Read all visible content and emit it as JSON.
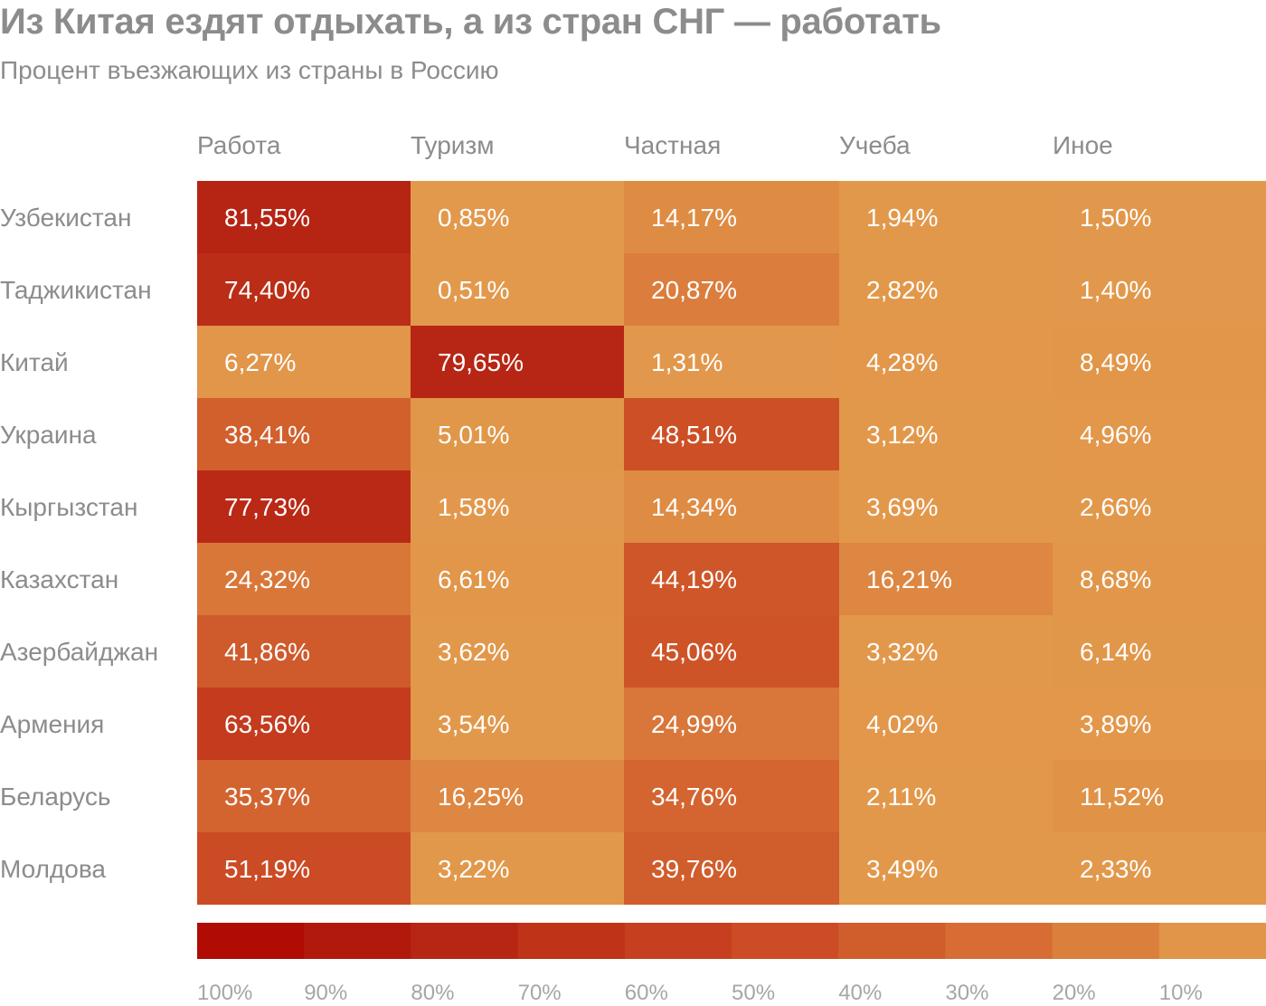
{
  "title": "Из Китая ездят отдыхать, а из стран СНГ — работать",
  "subtitle": "Процент въезжающих из страны в Россию",
  "chart_data": {
    "type": "heatmap",
    "columns": [
      "Работа",
      "Туризм",
      "Частная",
      "Учеба",
      "Иное"
    ],
    "rows": [
      "Узбекистан",
      "Таджикистан",
      "Китай",
      "Украина",
      "Кыргызстан",
      "Казахстан",
      "Азербайджан",
      "Армения",
      "Беларусь",
      "Молдова"
    ],
    "values": [
      [
        81.55,
        0.85,
        14.17,
        1.94,
        1.5
      ],
      [
        74.4,
        0.51,
        20.87,
        2.82,
        1.4
      ],
      [
        6.27,
        79.65,
        1.31,
        4.28,
        8.49
      ],
      [
        38.41,
        5.01,
        48.51,
        3.12,
        4.96
      ],
      [
        77.73,
        1.58,
        14.34,
        3.69,
        2.66
      ],
      [
        24.32,
        6.61,
        44.19,
        16.21,
        8.68
      ],
      [
        41.86,
        3.62,
        45.06,
        3.32,
        6.14
      ],
      [
        63.56,
        3.54,
        24.99,
        4.02,
        3.89
      ],
      [
        35.37,
        16.25,
        34.76,
        2.11,
        11.52
      ],
      [
        51.19,
        3.22,
        39.76,
        3.49,
        2.33
      ]
    ],
    "labels": [
      [
        "81,55%",
        "0,85%",
        "14,17%",
        "1,94%",
        "1,50%"
      ],
      [
        "74,40%",
        "0,51%",
        "20,87%",
        "2,82%",
        "1,40%"
      ],
      [
        "6,27%",
        "79,65%",
        "1,31%",
        "4,28%",
        "8,49%"
      ],
      [
        "38,41%",
        "5,01%",
        "48,51%",
        "3,12%",
        "4,96%"
      ],
      [
        "77,73%",
        "1,58%",
        "14,34%",
        "3,69%",
        "2,66%"
      ],
      [
        "24,32%",
        "6,61%",
        "44,19%",
        "16,21%",
        "8,68%"
      ],
      [
        "41,86%",
        "3,62%",
        "45,06%",
        "3,32%",
        "6,14%"
      ],
      [
        "63,56%",
        "3,54%",
        "24,99%",
        "4,02%",
        "3,89%"
      ],
      [
        "35,37%",
        "16,25%",
        "34,76%",
        "2,11%",
        "11,52%"
      ],
      [
        "51,19%",
        "3,22%",
        "39,76%",
        "3,49%",
        "2,33%"
      ]
    ],
    "color_scale": {
      "stops": [
        "#b00c04",
        "#b2190d",
        "#b72614",
        "#bf3318",
        "#c6401f",
        "#cc4c25",
        "#d05d2c",
        "#d76d34",
        "#db7f3d",
        "#e19549"
      ],
      "tick_labels": [
        "100%",
        "90%",
        "80%",
        "70%",
        "60%",
        "50%",
        "40%",
        "30%",
        "20%",
        "10%"
      ]
    },
    "colors": {
      "text_on_cell": "#ffffff",
      "label_gray": "#8c8c8c"
    }
  }
}
